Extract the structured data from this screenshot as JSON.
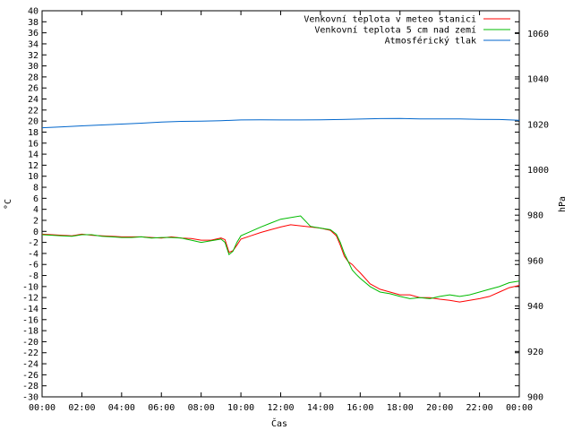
{
  "chart_data": {
    "type": "line",
    "title": "",
    "xlabel": "Čas",
    "ylabel": "°C",
    "y2label": "hPa",
    "x_ticks": [
      "00:00",
      "02:00",
      "04:00",
      "06:00",
      "08:00",
      "10:00",
      "12:00",
      "14:00",
      "16:00",
      "18:00",
      "20:00",
      "22:00",
      "00:00"
    ],
    "xlim_hours": [
      0,
      24
    ],
    "ylim": [
      -30,
      40
    ],
    "y_ticks": [
      40,
      38,
      36,
      34,
      32,
      30,
      28,
      26,
      24,
      22,
      20,
      18,
      16,
      14,
      12,
      10,
      8,
      6,
      4,
      2,
      0,
      -2,
      -4,
      -6,
      -8,
      -10,
      -12,
      -14,
      -16,
      -18,
      -20,
      -22,
      -24,
      -26,
      -28,
      -30
    ],
    "y2lim": [
      900,
      1070
    ],
    "y2_ticks": [
      1060,
      1040,
      1020,
      1000,
      980,
      960,
      940,
      920,
      900
    ],
    "grid": false,
    "legend_position": "top-right",
    "series": [
      {
        "name": "Venkovní teplota v meteo stanici",
        "color": "#ff0000",
        "axis": "left",
        "x": [
          0,
          0.5,
          1,
          1.5,
          2,
          2.5,
          3,
          3.5,
          4,
          4.5,
          5,
          5.5,
          6,
          6.5,
          7,
          7.5,
          8,
          8.5,
          9,
          9.2,
          9.4,
          9.6,
          9.8,
          10,
          10.5,
          11,
          11.5,
          12,
          12.5,
          13,
          13.5,
          14,
          14.5,
          14.8,
          15,
          15.2,
          15.4,
          15.6,
          15.8,
          16,
          16.5,
          17,
          17.5,
          18,
          18.5,
          19,
          19.5,
          20,
          20.5,
          21,
          21.5,
          22,
          22.5,
          23,
          23.5,
          24
        ],
        "y": [
          -0.5,
          -0.6,
          -0.7,
          -0.8,
          -0.5,
          -0.7,
          -0.8,
          -0.9,
          -1.0,
          -1.0,
          -1.0,
          -1.1,
          -1.2,
          -1.0,
          -1.2,
          -1.3,
          -1.6,
          -1.6,
          -1.2,
          -1.5,
          -3.8,
          -3.5,
          -2.5,
          -1.4,
          -0.8,
          -0.2,
          0.3,
          0.8,
          1.2,
          1.0,
          0.8,
          0.6,
          0.2,
          -0.8,
          -2.5,
          -4.5,
          -5.5,
          -6.0,
          -6.8,
          -7.5,
          -9.5,
          -10.5,
          -11.0,
          -11.5,
          -11.5,
          -12.0,
          -12.0,
          -12.3,
          -12.5,
          -12.8,
          -12.5,
          -12.2,
          -11.8,
          -11.0,
          -10.2,
          -9.8
        ]
      },
      {
        "name": "Venkovní teplota 5 cm nad zemí",
        "color": "#00bb00",
        "axis": "left",
        "x": [
          0,
          0.5,
          1,
          1.5,
          2,
          2.5,
          3,
          3.5,
          4,
          4.5,
          5,
          5.5,
          6,
          6.5,
          7,
          7.5,
          8,
          8.5,
          9,
          9.2,
          9.4,
          9.6,
          9.8,
          10,
          10.5,
          11,
          11.5,
          12,
          12.5,
          13,
          13.5,
          14,
          14.5,
          14.8,
          15,
          15.2,
          15.4,
          15.6,
          15.8,
          16,
          16.5,
          17,
          17.5,
          18,
          18.5,
          19,
          19.5,
          20,
          20.5,
          21,
          21.5,
          22,
          22.5,
          23,
          23.5,
          24
        ],
        "y": [
          -0.6,
          -0.7,
          -0.8,
          -0.9,
          -0.6,
          -0.6,
          -0.9,
          -1.0,
          -1.1,
          -1.1,
          -1.0,
          -1.2,
          -1.1,
          -1.1,
          -1.2,
          -1.6,
          -2.0,
          -1.7,
          -1.4,
          -2.0,
          -4.2,
          -3.6,
          -2.0,
          -0.8,
          0.0,
          0.8,
          1.5,
          2.2,
          2.5,
          2.8,
          0.9,
          0.6,
          0.3,
          -0.5,
          -2.0,
          -4.0,
          -5.5,
          -7.0,
          -7.8,
          -8.5,
          -10.0,
          -11.0,
          -11.3,
          -11.8,
          -12.2,
          -12.0,
          -12.2,
          -11.8,
          -11.5,
          -11.8,
          -11.5,
          -11.0,
          -10.5,
          -10.0,
          -9.3,
          -9.0
        ]
      },
      {
        "name": "Atmosférický tlak",
        "color": "#0066cc",
        "axis": "right",
        "x": [
          0,
          1,
          2,
          3,
          4,
          5,
          6,
          7,
          8,
          9,
          10,
          11,
          12,
          13,
          14,
          15,
          16,
          17,
          18,
          19,
          20,
          21,
          22,
          23,
          24
        ],
        "y": [
          1018.5,
          1018.9,
          1019.3,
          1019.7,
          1020.1,
          1020.5,
          1021.0,
          1021.3,
          1021.4,
          1021.6,
          1021.9,
          1022.0,
          1021.9,
          1021.9,
          1022.0,
          1022.1,
          1022.3,
          1022.5,
          1022.6,
          1022.4,
          1022.4,
          1022.4,
          1022.2,
          1022.1,
          1021.8
        ]
      }
    ]
  }
}
